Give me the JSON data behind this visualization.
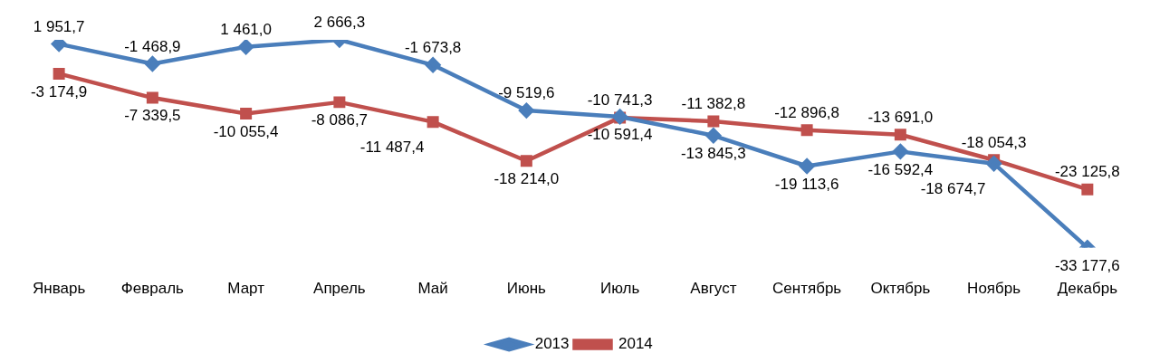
{
  "chart_data": {
    "type": "line",
    "categories": [
      "Январь",
      "Февраль",
      "Март",
      "Апрель",
      "Май",
      "Июнь",
      "Июль",
      "Август",
      "Сентябрь",
      "Октябрь",
      "Ноябрь",
      "Декабрь"
    ],
    "series": [
      {
        "name": "2013",
        "color": "#4a7ebb",
        "marker": "diamond",
        "values": [
          1951.7,
          -1468.9,
          1461.0,
          2666.3,
          -1673.8,
          -9519.6,
          -10591.4,
          -13845.3,
          -19113.6,
          -16592.4,
          -18674.7,
          -33177.6
        ],
        "value_labels": [
          "1 951,7",
          "-1 468,9",
          "1 461,0",
          "2 666,3",
          "-1 673,8",
          "-9 519,6",
          "-10 591,4",
          "-13 845,3",
          "-19 113,6",
          "-16 592,4",
          "-18 674,7",
          "-33 177,6"
        ]
      },
      {
        "name": "2014",
        "color": "#c0504d",
        "marker": "square",
        "values": [
          -3174.9,
          -7339.5,
          -10055.4,
          -8086.7,
          -11487.4,
          -18214.0,
          -10741.3,
          -11382.8,
          -12896.8,
          -13691.0,
          -18054.3,
          -23125.8
        ],
        "value_labels": [
          "-3 174,9",
          "-7 339,5",
          "-10 055,4",
          "-8 086,7",
          "-11 487,4",
          "-18 214,0",
          "-10 741,3",
          "-11 382,8",
          "-12 896,8",
          "-13 691,0",
          "-18 054,3",
          "-23 125,8"
        ]
      }
    ],
    "legend": "bottom",
    "line_style": "solid"
  }
}
